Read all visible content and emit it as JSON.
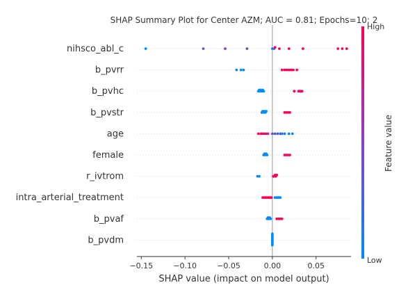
{
  "chart_data": {
    "type": "scatter",
    "title": "SHAP Summary Plot for Center AZM; AUC = 0.81; Epochs=10; 2",
    "xlabel": "SHAP value (impact on model output)",
    "xlim": [
      -0.155,
      0.09
    ],
    "xticks": [
      -0.15,
      -0.1,
      -0.05,
      0.0,
      0.05
    ],
    "xtick_labels": [
      "−0.15",
      "−0.10",
      "−0.05",
      "0.00",
      "0.05"
    ],
    "grid": "horizontal dotted lines per feature",
    "colorbar": {
      "label": "Feature value",
      "high_label": "High",
      "low_label": "Low",
      "colors": [
        "#008bfb",
        "#ff0052"
      ]
    },
    "features": [
      {
        "name": "nihsco_abl_c",
        "points": [
          [
            -0.145,
            0.0
          ],
          [
            -0.079,
            0.35
          ],
          [
            -0.054,
            0.5
          ],
          [
            -0.029,
            0.4
          ],
          [
            0.0,
            0.15
          ],
          [
            0.002,
            0.15
          ],
          [
            0.003,
            0.95
          ],
          [
            0.008,
            0.9
          ],
          [
            0.019,
            0.95
          ],
          [
            0.035,
            0.9
          ],
          [
            0.075,
            1.0
          ],
          [
            0.08,
            1.0
          ],
          [
            0.085,
            1.0
          ]
        ]
      },
      {
        "name": "b_pvrr",
        "points": [
          [
            -0.041,
            0.0
          ],
          [
            -0.036,
            0.0
          ],
          [
            -0.033,
            0.0
          ],
          [
            0.011,
            1.0
          ],
          [
            0.014,
            1.0
          ],
          [
            0.016,
            1.0
          ],
          [
            0.018,
            1.0
          ],
          [
            0.02,
            1.0
          ],
          [
            0.022,
            1.0
          ],
          [
            0.024,
            1.0
          ],
          [
            0.028,
            1.0
          ]
        ]
      },
      {
        "name": "b_pvhc",
        "points": [
          [
            -0.016,
            0.0
          ],
          [
            -0.015,
            0.0
          ],
          [
            -0.014,
            0.0
          ],
          [
            -0.013,
            0.0
          ],
          [
            -0.012,
            0.0
          ],
          [
            -0.011,
            0.0
          ],
          [
            -0.01,
            0.0
          ],
          [
            0.025,
            1.0
          ],
          [
            0.03,
            1.0
          ],
          [
            0.032,
            1.0
          ],
          [
            0.034,
            1.0
          ]
        ]
      },
      {
        "name": "b_pvstr",
        "points": [
          [
            -0.012,
            0.0
          ],
          [
            -0.011,
            0.0
          ],
          [
            -0.01,
            0.0
          ],
          [
            -0.009,
            0.0
          ],
          [
            -0.008,
            0.0
          ],
          [
            -0.007,
            0.0
          ],
          [
            0.014,
            1.0
          ],
          [
            0.016,
            1.0
          ],
          [
            0.018,
            1.0
          ],
          [
            0.02,
            1.0
          ]
        ]
      },
      {
        "name": "age",
        "points": [
          [
            -0.016,
            1.0
          ],
          [
            -0.013,
            1.0
          ],
          [
            -0.011,
            0.9
          ],
          [
            -0.009,
            0.85
          ],
          [
            -0.007,
            0.8
          ],
          [
            -0.005,
            0.7
          ],
          [
            0.0,
            0.4
          ],
          [
            0.003,
            0.35
          ],
          [
            0.006,
            0.3
          ],
          [
            0.009,
            0.2
          ],
          [
            0.011,
            0.15
          ],
          [
            0.014,
            0.1
          ],
          [
            0.019,
            0.0
          ],
          [
            0.023,
            0.0
          ]
        ]
      },
      {
        "name": "female",
        "points": [
          [
            -0.01,
            0.0
          ],
          [
            -0.009,
            0.0
          ],
          [
            -0.008,
            0.0
          ],
          [
            -0.007,
            0.0
          ],
          [
            -0.006,
            0.0
          ],
          [
            0.014,
            1.0
          ],
          [
            0.016,
            1.0
          ],
          [
            0.018,
            1.0
          ],
          [
            0.02,
            1.0
          ]
        ]
      },
      {
        "name": "r_ivtrom",
        "points": [
          [
            -0.017,
            0.0
          ],
          [
            -0.015,
            0.0
          ],
          [
            0.001,
            1.0
          ],
          [
            0.002,
            1.0
          ],
          [
            0.003,
            1.0
          ],
          [
            0.004,
            1.0
          ],
          [
            0.005,
            1.0
          ]
        ]
      },
      {
        "name": "intra_arterial_treatment",
        "points": [
          [
            -0.011,
            1.0
          ],
          [
            -0.009,
            1.0
          ],
          [
            -0.007,
            1.0
          ],
          [
            -0.005,
            1.0
          ],
          [
            -0.003,
            1.0
          ],
          [
            -0.001,
            1.0
          ],
          [
            0.003,
            0.0
          ],
          [
            0.005,
            0.0
          ],
          [
            0.007,
            0.0
          ],
          [
            0.009,
            0.0
          ]
        ]
      },
      {
        "name": "b_pvaf",
        "points": [
          [
            -0.006,
            0.0
          ],
          [
            -0.005,
            0.0
          ],
          [
            -0.004,
            0.0
          ],
          [
            -0.003,
            0.0
          ],
          [
            -0.002,
            0.0
          ],
          [
            0.005,
            1.0
          ],
          [
            0.007,
            1.0
          ],
          [
            0.009,
            1.0
          ],
          [
            0.011,
            1.0
          ]
        ]
      },
      {
        "name": "b_pvdm",
        "points": [
          [
            0.0,
            0.0
          ],
          [
            0.0,
            0.0
          ],
          [
            0.0,
            0.0
          ],
          [
            0.0,
            0.0
          ],
          [
            0.0,
            0.0
          ],
          [
            0.0,
            0.0
          ],
          [
            0.0,
            0.0
          ],
          [
            0.0,
            0.0
          ],
          [
            0.0,
            0.0
          ],
          [
            0.0,
            0.0
          ]
        ]
      }
    ]
  }
}
